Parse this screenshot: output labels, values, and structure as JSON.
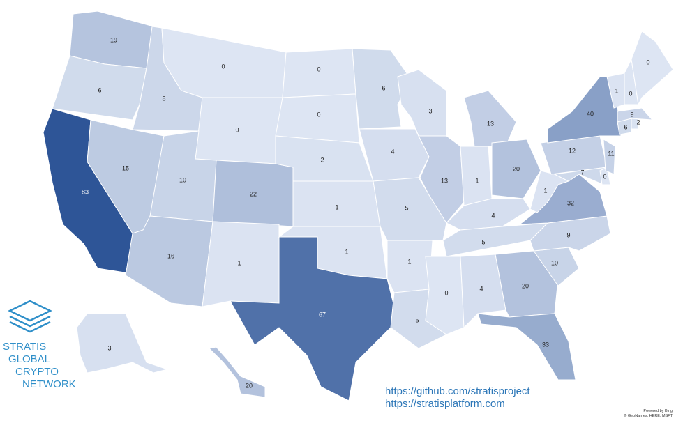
{
  "map": {
    "type": "choropleth",
    "values": [
      19,
      6,
      83,
      8,
      15,
      0,
      0,
      10,
      16,
      22,
      1,
      0,
      0,
      2,
      1,
      1,
      67,
      6,
      4,
      5,
      1,
      5,
      3,
      13,
      13,
      1,
      20,
      4,
      5,
      0,
      4,
      20,
      33,
      10,
      9,
      32,
      1,
      12,
      40,
      7,
      0,
      11,
      6,
      2,
      9,
      1,
      0,
      0,
      3,
      20
    ],
    "color_scale": {
      "min_color": "#dde5f3",
      "max_color": "#2e5597"
    },
    "border_color": "#ffffff"
  },
  "logo": {
    "lines": [
      "STRATIS",
      "GLOBAL",
      "CRYPTO",
      "NETWORK"
    ]
  },
  "links": [
    "https://github.com/stratisproject",
    "https://stratisplatform.com"
  ],
  "attribution": [
    "Powered by Bing",
    "© GeoNames, HERE, MSFT"
  ]
}
